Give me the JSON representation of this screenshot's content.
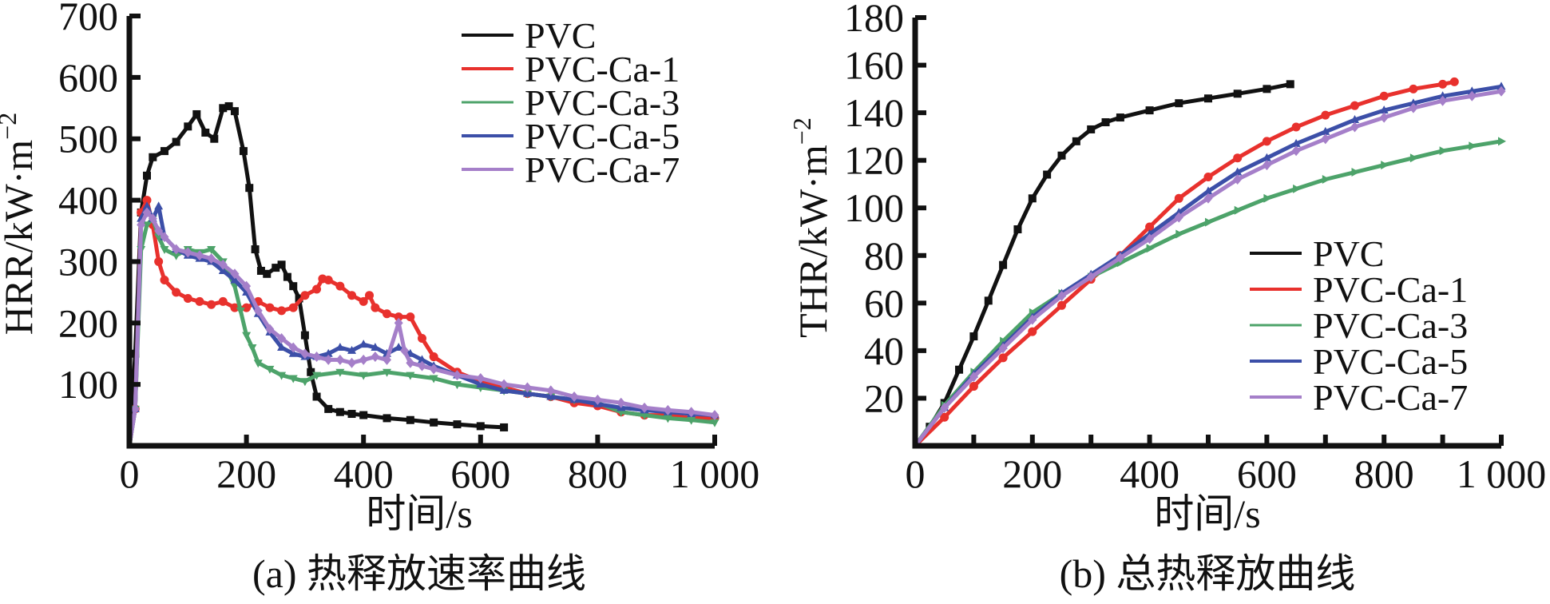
{
  "chart_data": [
    {
      "type": "line",
      "panel": "a",
      "caption": "(a) 热释放速率曲线",
      "xlabel": "时间/s",
      "ylabel": "HRR/kW·m",
      "ylabel_superscript": "−2",
      "xlim": [
        0,
        1000
      ],
      "ylim": [
        0,
        700
      ],
      "x_ticks": [
        0,
        200,
        400,
        600,
        800,
        1000
      ],
      "x_tick_labels": [
        "0",
        "200",
        "400",
        "600",
        "800",
        "1 000"
      ],
      "y_ticks": [
        100,
        200,
        300,
        400,
        500,
        600,
        700
      ],
      "y_tick_labels": [
        "100",
        "200",
        "300",
        "400",
        "500",
        "600",
        "700"
      ],
      "grid": false,
      "legend_position": "top-right",
      "series": [
        {
          "name": "PVC",
          "color": "#111111",
          "marker": "square",
          "x": [
            0,
            10,
            20,
            30,
            40,
            60,
            80,
            100,
            115,
            130,
            145,
            160,
            170,
            180,
            195,
            205,
            215,
            225,
            235,
            250,
            260,
            270,
            280,
            290,
            300,
            310,
            320,
            340,
            360,
            380,
            400,
            440,
            480,
            520,
            560,
            600,
            640
          ],
          "y": [
            0,
            150,
            380,
            440,
            470,
            480,
            495,
            520,
            540,
            510,
            500,
            550,
            553,
            545,
            480,
            420,
            320,
            285,
            280,
            290,
            295,
            275,
            260,
            240,
            180,
            120,
            80,
            60,
            55,
            52,
            50,
            45,
            42,
            38,
            35,
            32,
            30
          ]
        },
        {
          "name": "PVC-Ca-1",
          "color": "#e8312d",
          "marker": "circle",
          "x": [
            0,
            10,
            20,
            30,
            40,
            50,
            60,
            80,
            100,
            120,
            140,
            160,
            180,
            200,
            220,
            240,
            260,
            280,
            300,
            320,
            330,
            340,
            360,
            380,
            400,
            410,
            420,
            440,
            460,
            480,
            500,
            520,
            560,
            600,
            640,
            680,
            720,
            760,
            800,
            840,
            880,
            920,
            960,
            1000
          ],
          "y": [
            0,
            60,
            380,
            400,
            360,
            300,
            270,
            250,
            240,
            235,
            230,
            235,
            225,
            225,
            235,
            225,
            220,
            225,
            245,
            255,
            272,
            270,
            260,
            245,
            235,
            245,
            225,
            215,
            210,
            210,
            175,
            145,
            120,
            105,
            95,
            85,
            80,
            70,
            65,
            55,
            50,
            50,
            45,
            45
          ]
        },
        {
          "name": "PVC-Ca-3",
          "color": "#4da36a",
          "marker": "triangle-down",
          "x": [
            0,
            10,
            20,
            30,
            40,
            50,
            60,
            80,
            100,
            120,
            140,
            160,
            170,
            180,
            190,
            200,
            210,
            220,
            240,
            260,
            280,
            300,
            320,
            360,
            400,
            440,
            480,
            520,
            560,
            600,
            640,
            680,
            720,
            760,
            800,
            840,
            880,
            920,
            960,
            1000
          ],
          "y": [
            0,
            60,
            320,
            360,
            370,
            340,
            320,
            310,
            320,
            315,
            320,
            300,
            280,
            260,
            220,
            180,
            160,
            135,
            125,
            115,
            110,
            105,
            115,
            120,
            115,
            120,
            115,
            110,
            100,
            95,
            90,
            85,
            80,
            75,
            70,
            55,
            50,
            45,
            42,
            38
          ]
        },
        {
          "name": "PVC-Ca-5",
          "color": "#3c4fa8",
          "marker": "triangle-up",
          "x": [
            0,
            10,
            20,
            30,
            40,
            50,
            60,
            80,
            100,
            120,
            140,
            160,
            180,
            200,
            220,
            240,
            260,
            280,
            300,
            320,
            340,
            360,
            380,
            400,
            420,
            440,
            460,
            480,
            500,
            520,
            560,
            600,
            640,
            680,
            720,
            760,
            800,
            840,
            880,
            920,
            960,
            1000
          ],
          "y": [
            0,
            60,
            370,
            390,
            370,
            390,
            340,
            320,
            310,
            305,
            300,
            285,
            270,
            250,
            215,
            185,
            160,
            150,
            145,
            145,
            150,
            160,
            155,
            165,
            160,
            150,
            160,
            150,
            140,
            130,
            115,
            100,
            90,
            85,
            80,
            75,
            68,
            62,
            58,
            55,
            52,
            50
          ]
        },
        {
          "name": "PVC-Ca-7",
          "color": "#a57fc9",
          "marker": "diamond",
          "x": [
            0,
            10,
            20,
            30,
            40,
            50,
            60,
            80,
            100,
            120,
            140,
            160,
            180,
            200,
            220,
            240,
            260,
            280,
            300,
            320,
            340,
            360,
            380,
            400,
            420,
            440,
            460,
            470,
            480,
            500,
            520,
            560,
            600,
            640,
            680,
            720,
            760,
            800,
            840,
            880,
            920,
            960,
            1000
          ],
          "y": [
            0,
            60,
            360,
            380,
            370,
            350,
            340,
            320,
            315,
            310,
            305,
            295,
            280,
            260,
            220,
            190,
            175,
            160,
            150,
            145,
            140,
            140,
            135,
            140,
            145,
            140,
            200,
            155,
            135,
            130,
            125,
            115,
            110,
            100,
            95,
            90,
            80,
            75,
            70,
            62,
            58,
            55,
            50
          ]
        }
      ]
    },
    {
      "type": "line",
      "panel": "b",
      "caption": "(b) 总热释放曲线",
      "xlabel": "时间/s",
      "ylabel": "THR/kW·m",
      "ylabel_superscript": "−2",
      "xlim": [
        0,
        1000
      ],
      "ylim": [
        0,
        180
      ],
      "x_ticks": [
        0,
        200,
        400,
        600,
        800,
        1000
      ],
      "x_minor_ticks": [
        100,
        300,
        500,
        700,
        900
      ],
      "x_tick_labels": [
        "0",
        "200",
        "400",
        "600",
        "800",
        "1 000"
      ],
      "y_ticks": [
        20,
        40,
        60,
        80,
        100,
        120,
        140,
        160,
        180
      ],
      "y_tick_labels": [
        "20",
        "40",
        "60",
        "80",
        "100",
        "120",
        "140",
        "160",
        "180"
      ],
      "grid": false,
      "legend_position": "bottom-right",
      "series": [
        {
          "name": "PVC",
          "color": "#111111",
          "marker": "square",
          "x": [
            0,
            25,
            50,
            75,
            100,
            125,
            150,
            175,
            200,
            225,
            250,
            275,
            300,
            325,
            350,
            400,
            450,
            500,
            550,
            600,
            640
          ],
          "y": [
            0,
            8,
            18,
            32,
            46,
            61,
            76,
            91,
            104,
            114,
            122,
            128,
            133,
            136,
            138,
            141,
            144,
            146,
            148,
            150,
            152
          ]
        },
        {
          "name": "PVC-Ca-1",
          "color": "#e8312d",
          "marker": "circle",
          "x": [
            0,
            50,
            100,
            150,
            200,
            250,
            300,
            350,
            400,
            450,
            500,
            550,
            600,
            650,
            700,
            750,
            800,
            850,
            900,
            920
          ],
          "y": [
            0,
            12,
            25,
            37,
            48,
            59,
            70,
            80,
            92,
            104,
            113,
            121,
            128,
            134,
            139,
            143,
            147,
            150,
            152,
            153
          ]
        },
        {
          "name": "PVC-Ca-3",
          "color": "#4da36a",
          "marker": "triangle-right",
          "x": [
            0,
            50,
            100,
            150,
            200,
            250,
            300,
            350,
            400,
            450,
            500,
            550,
            600,
            650,
            700,
            750,
            800,
            850,
            900,
            950,
            1000
          ],
          "y": [
            0,
            17,
            31,
            44,
            56,
            64,
            71,
            77,
            83,
            89,
            94,
            99,
            104,
            108,
            112,
            115,
            118,
            121,
            124,
            126,
            128
          ]
        },
        {
          "name": "PVC-Ca-5",
          "color": "#3c4fa8",
          "marker": "triangle-up",
          "x": [
            0,
            50,
            100,
            150,
            200,
            250,
            300,
            350,
            400,
            450,
            500,
            550,
            600,
            650,
            700,
            750,
            800,
            850,
            900,
            950,
            1000
          ],
          "y": [
            0,
            16,
            30,
            42,
            54,
            64,
            72,
            80,
            89,
            98,
            107,
            115,
            121,
            127,
            132,
            137,
            141,
            144,
            147,
            149,
            151
          ]
        },
        {
          "name": "PVC-Ca-7",
          "color": "#a57fc9",
          "marker": "diamond",
          "x": [
            0,
            50,
            100,
            150,
            200,
            250,
            300,
            350,
            400,
            450,
            500,
            550,
            600,
            650,
            700,
            750,
            800,
            850,
            900,
            950,
            1000
          ],
          "y": [
            0,
            16,
            29,
            41,
            53,
            63,
            71,
            79,
            87,
            96,
            104,
            112,
            118,
            124,
            129,
            134,
            138,
            142,
            145,
            147,
            149
          ]
        }
      ]
    }
  ]
}
